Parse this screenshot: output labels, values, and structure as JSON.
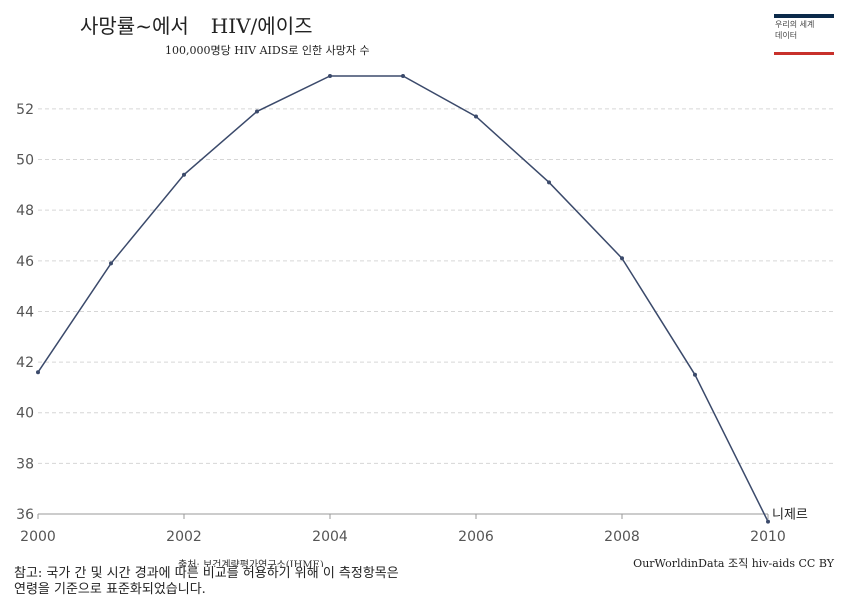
{
  "header": {
    "title_part1": "사망률~에서",
    "title_part2": "HIV/에이즈",
    "subtitle": "100,000명당 HIV AIDS로 인한 사망자 수"
  },
  "logo": {
    "line1": "우리의 세계",
    "line2": "데이터"
  },
  "chart_data": {
    "type": "line",
    "title": "사망률~에서 HIV/에이즈",
    "subtitle": "100,000명당 HIV AIDS로 인한 사망자 수",
    "x": [
      2000,
      2001,
      2002,
      2003,
      2004,
      2005,
      2006,
      2007,
      2008,
      2009,
      2010
    ],
    "series": [
      {
        "name": "니제르",
        "values": [
          41.6,
          45.9,
          49.4,
          51.9,
          53.3,
          53.3,
          51.7,
          49.1,
          46.1,
          41.5,
          35.7
        ]
      }
    ],
    "xlim": [
      2000,
      2010
    ],
    "ylim": [
      36,
      53.3
    ],
    "x_ticks": [
      "2000",
      "2002",
      "2004",
      "2006",
      "2008",
      "2010"
    ],
    "y_ticks": [
      "36",
      "38",
      "40",
      "42",
      "44",
      "46",
      "48",
      "50",
      "52"
    ],
    "grid": "horizontal dashed",
    "line_color": "#3b4a6b"
  },
  "footer": {
    "source": "출처: 보건계량평가연구소(IHME)",
    "credit": "OurWorldinData 조직 hiv-aids CC BY",
    "note_line1": "참고: 국가 간 및 시간 경과에 따른 비교를 허용하기 위해 이 측정항목은",
    "note_line2": "연령을 기준으로 표준화되었습니다."
  }
}
